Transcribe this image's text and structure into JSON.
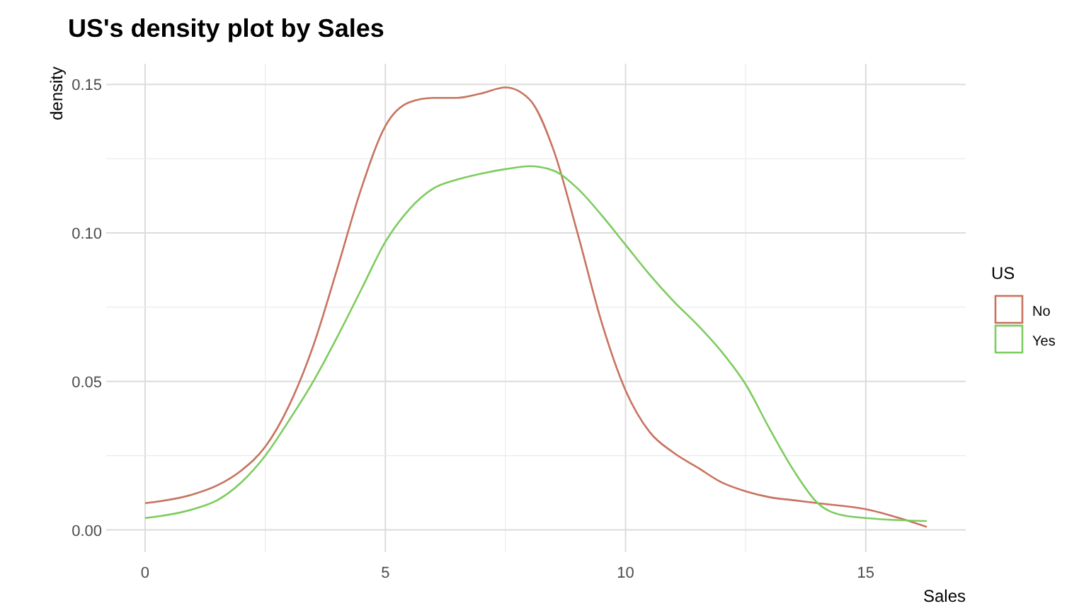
{
  "chart_data": {
    "type": "line",
    "title": "US's density plot by Sales",
    "xlabel": "Sales",
    "ylabel": "density",
    "legend_title": "US",
    "legend": "right",
    "grid": true,
    "marker": "none",
    "line_style": "solid",
    "xlim": [
      -0.81,
      17.08
    ],
    "ylim": [
      -0.0075,
      0.157
    ],
    "xticks": [
      0,
      {
        "value": 2.5,
        "label": null
      },
      5,
      {
        "value": 7.5,
        "label": null
      },
      10,
      {
        "value": 12.5,
        "label": null
      },
      15
    ],
    "yticks": [
      {
        "value": 0,
        "label": "0.00"
      },
      {
        "value": 0.025,
        "label": null
      },
      {
        "value": 0.05,
        "label": "0.05"
      },
      {
        "value": 0.075,
        "label": null
      },
      {
        "value": 0.1,
        "label": "0.10"
      },
      {
        "value": 0.125,
        "label": null
      },
      {
        "value": 0.15,
        "label": "0.15"
      }
    ],
    "series": [
      {
        "name": "No",
        "color": "#c8735f",
        "x": [
          0,
          1,
          1.5,
          2,
          2.5,
          3,
          3.5,
          4,
          4.5,
          5,
          5.5,
          6,
          6.5,
          7,
          7.5,
          8,
          8.5,
          9,
          9.5,
          10,
          10.5,
          11,
          11.5,
          12,
          12.5,
          13,
          13.5,
          14,
          15,
          16.27
        ],
        "values": [
          0.009,
          0.012,
          0.015,
          0.02,
          0.028,
          0.042,
          0.062,
          0.088,
          0.115,
          0.136,
          0.144,
          0.1455,
          0.1455,
          0.147,
          0.149,
          0.145,
          0.128,
          0.1,
          0.07,
          0.047,
          0.033,
          0.026,
          0.021,
          0.016,
          0.013,
          0.011,
          0.01,
          0.009,
          0.007,
          0.001
        ]
      },
      {
        "name": "Yes",
        "color": "#7dcc5f",
        "x": [
          0,
          1,
          1.5,
          2,
          2.5,
          3,
          3.5,
          4,
          4.5,
          5,
          5.5,
          6,
          6.5,
          7,
          7.5,
          8,
          8.5,
          9,
          9.5,
          10,
          10.5,
          11,
          11.5,
          12,
          12.5,
          13,
          13.5,
          14,
          14.5,
          15,
          16.27
        ],
        "values": [
          0.004,
          0.007,
          0.01,
          0.016,
          0.025,
          0.037,
          0.05,
          0.065,
          0.081,
          0.097,
          0.108,
          0.115,
          0.118,
          0.12,
          0.1215,
          0.1225,
          0.121,
          0.115,
          0.106,
          0.096,
          0.086,
          0.077,
          0.069,
          0.06,
          0.049,
          0.034,
          0.02,
          0.009,
          0.005,
          0.004,
          0.003
        ]
      }
    ]
  }
}
